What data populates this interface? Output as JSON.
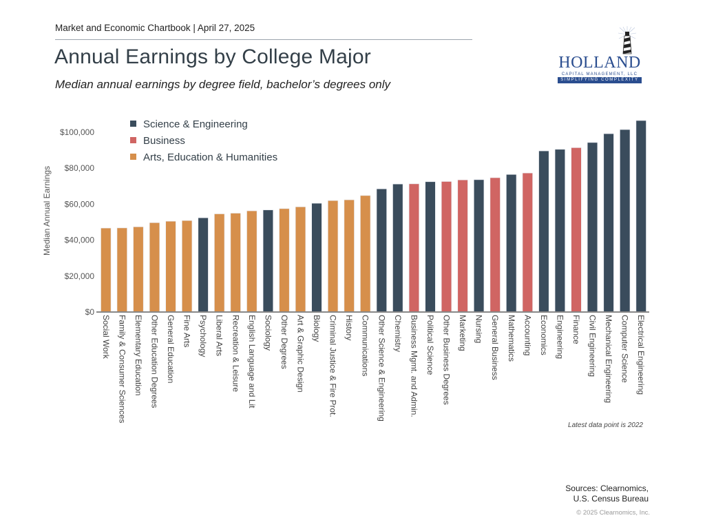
{
  "header": {
    "chartbook": "Market and Economic Chartbook | April 27, 2025",
    "title": "Annual Earnings by College Major",
    "subtitle": "Median annual earnings by degree field, bachelor’s degrees only"
  },
  "logo": {
    "name": "HOLLAND",
    "sub": "CAPITAL MANAGEMENT, LLC",
    "tagline": "SIMPLIFYING COMPLEXITY"
  },
  "colors": {
    "science": "#3a4c5c",
    "business": "#d06563",
    "arts": "#d68f4b",
    "axis": "#888888",
    "text": "#333f48"
  },
  "chart_data": {
    "type": "bar",
    "title": "Annual Earnings by College Major",
    "xlabel": "",
    "ylabel": "Median Annual Earnings",
    "ylim": [
      0,
      110000
    ],
    "yticks": [
      0,
      20000,
      40000,
      60000,
      80000,
      100000
    ],
    "ytick_labels": [
      "$0",
      "$20,000",
      "$40,000",
      "$60,000",
      "$80,000",
      "$100,000"
    ],
    "legend_position": "top-left",
    "legend": [
      {
        "key": "science",
        "label": "Science & Engineering"
      },
      {
        "key": "business",
        "label": "Business"
      },
      {
        "key": "arts",
        "label": "Arts, Education & Humanities"
      }
    ],
    "categories": [
      "Social Work",
      "Family & Consumer Sciences",
      "Elementary Education",
      "Other Education Degrees",
      "General Education",
      "Fine Arts",
      "Psychology",
      "Liberal Arts",
      "Recreation & Leisure",
      "English Language and Lit",
      "Sociology",
      "Other Degrees",
      "Art & Graphic Design",
      "Biology",
      "Criminal Justice & Fire Prot.",
      "History",
      "Communications",
      "Other Science & Engineering",
      "Chemistry",
      "Business Mgmt. and Admin.",
      "Political Science",
      "Other Business Degrees",
      "Marketing",
      "Nursing",
      "General Business",
      "Mathematics",
      "Accounting",
      "Economics",
      "Engineering",
      "Finance",
      "Civil Engineering",
      "Mechanical Engineering",
      "Computer Science",
      "Electrical Engineering"
    ],
    "groups": [
      "arts",
      "arts",
      "arts",
      "arts",
      "arts",
      "arts",
      "science",
      "arts",
      "arts",
      "arts",
      "science",
      "arts",
      "arts",
      "science",
      "arts",
      "arts",
      "arts",
      "science",
      "science",
      "business",
      "science",
      "business",
      "business",
      "science",
      "business",
      "science",
      "business",
      "science",
      "science",
      "business",
      "science",
      "science",
      "science",
      "science"
    ],
    "values": [
      46700,
      46800,
      47400,
      49700,
      50500,
      50900,
      52400,
      54600,
      55000,
      56300,
      56800,
      57500,
      58500,
      60500,
      62000,
      62400,
      64800,
      68500,
      71200,
      71300,
      72500,
      72600,
      73500,
      73600,
      74700,
      76500,
      77300,
      89600,
      90500,
      91400,
      94300,
      99200,
      101500,
      106500
    ],
    "annotations": [
      "Latest data point is 2022"
    ]
  },
  "footer": {
    "note": "Latest data point is 2022",
    "sources_line1": "Sources: Clearnomics,",
    "sources_line2": "U.S. Census Bureau",
    "copyright": "© 2025 Clearnomics, Inc."
  }
}
